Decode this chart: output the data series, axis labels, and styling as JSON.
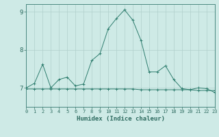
{
  "x": [
    0,
    1,
    2,
    3,
    4,
    5,
    6,
    7,
    8,
    9,
    10,
    11,
    12,
    13,
    14,
    15,
    16,
    17,
    18,
    19,
    20,
    21,
    22,
    23
  ],
  "y_curve": [
    7.0,
    7.12,
    7.62,
    7.0,
    7.22,
    7.28,
    7.05,
    7.1,
    7.72,
    7.9,
    8.55,
    8.82,
    9.05,
    8.78,
    8.25,
    7.42,
    7.42,
    7.58,
    7.22,
    6.98,
    6.95,
    7.0,
    6.98,
    6.88
  ],
  "y_flat": [
    6.97,
    6.97,
    6.97,
    6.97,
    6.97,
    6.97,
    6.97,
    6.97,
    6.97,
    6.97,
    6.97,
    6.97,
    6.97,
    6.97,
    6.95,
    6.95,
    6.95,
    6.95,
    6.95,
    6.95,
    6.95,
    6.93,
    6.93,
    6.93
  ],
  "xlim": [
    0,
    23
  ],
  "ylim": [
    6.5,
    9.2
  ],
  "yticks": [
    7,
    8,
    9
  ],
  "ytick_labels": [
    "7",
    "8",
    "9"
  ],
  "xlabel": "Humidex (Indice chaleur)",
  "line_color": "#2e7d6e",
  "bg_color": "#ceeae6",
  "grid_color": "#b0d0cc",
  "axis_color": "#2e6b60",
  "spine_color": "#4a8880"
}
